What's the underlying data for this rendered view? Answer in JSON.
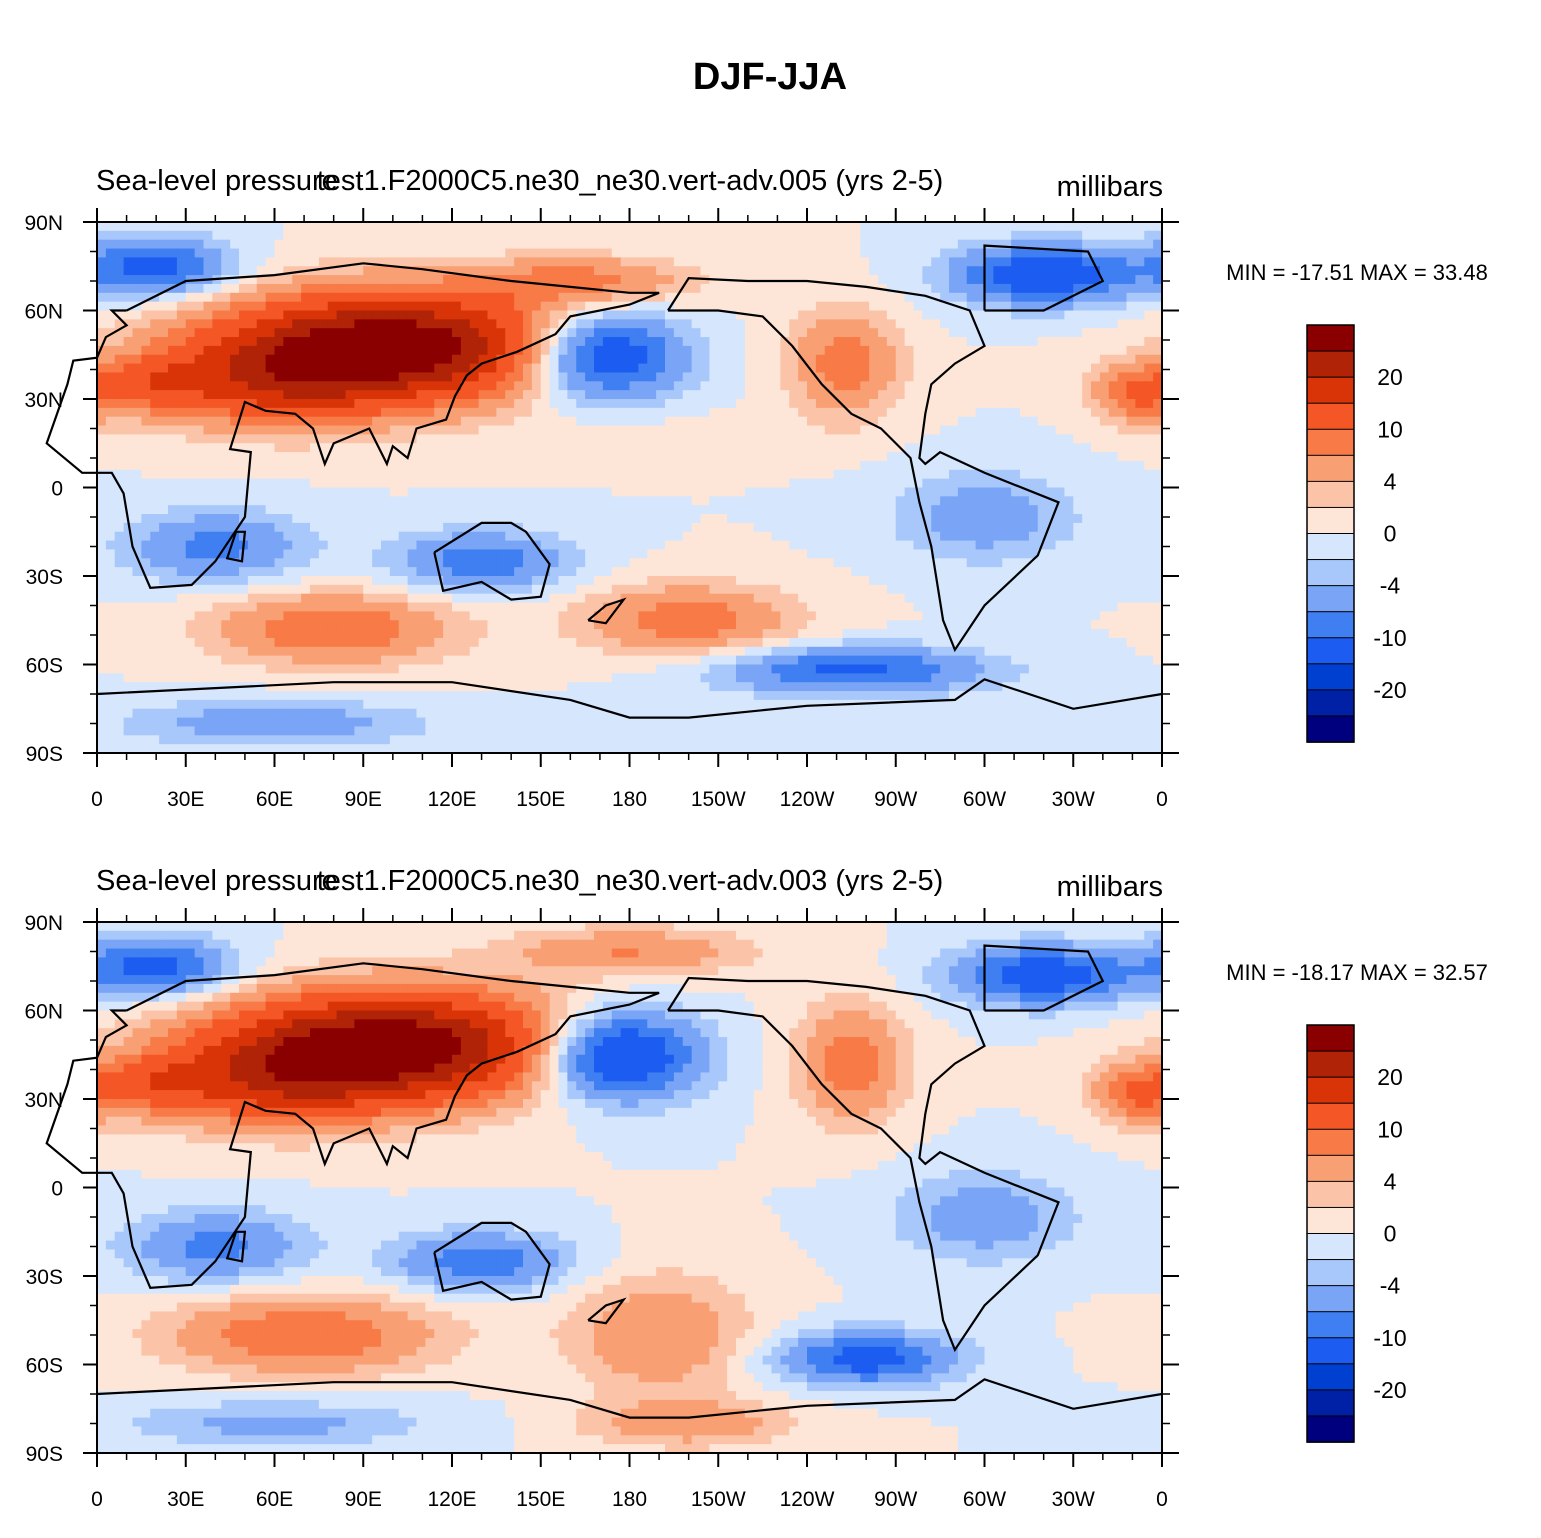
{
  "figure": {
    "title": "DJF-JJA"
  },
  "colors": {
    "levels": [
      "#00007f",
      "#0021a6",
      "#0040d0",
      "#1c5cf0",
      "#3f7ff2",
      "#7aa4f6",
      "#a8c8fb",
      "#d5e6fd",
      "#fde6d8",
      "#fbc4a8",
      "#f99f74",
      "#f77a47",
      "#f45725",
      "#d83408",
      "#b02307",
      "#8a0000"
    ],
    "land_outline": "#000000"
  },
  "chart_data": [
    {
      "type": "heatmap",
      "title_left": "Sea-level pressure",
      "title_center": "test1.F2000C5.ne30_ne30.vert-adv.005 (yrs 2-5)",
      "units": "millibars",
      "stats_text": "MIN = -17.51 MAX =  33.48",
      "min": -17.51,
      "max": 33.48,
      "x_ticks": [
        "0",
        "30E",
        "60E",
        "90E",
        "120E",
        "150E",
        "180",
        "150W",
        "120W",
        "90W",
        "60W",
        "30W",
        "0"
      ],
      "y_ticks": [
        "90N",
        "60N",
        "30N",
        "0",
        "30S",
        "60S",
        "90S"
      ],
      "lon_range": [
        0,
        360
      ],
      "lat_range": [
        -90,
        90
      ],
      "colorbar_labels": [
        "20",
        "10",
        "4",
        "0",
        "-4",
        "-10",
        "-20"
      ],
      "blobs": [
        {
          "lon": 100,
          "lat": 48,
          "rx": 58,
          "ry": 18,
          "amp": 30
        },
        {
          "lon": 60,
          "lat": 35,
          "rx": 40,
          "ry": 15,
          "amp": 12
        },
        {
          "lon": 20,
          "lat": 35,
          "rx": 18,
          "ry": 10,
          "amp": 8
        },
        {
          "lon": 165,
          "lat": 70,
          "rx": 35,
          "ry": 8,
          "amp": 8
        },
        {
          "lon": 253,
          "lat": 42,
          "rx": 18,
          "ry": 18,
          "amp": 9
        },
        {
          "lon": 352,
          "lat": 32,
          "rx": 15,
          "ry": 10,
          "amp": 10
        },
        {
          "lon": 200,
          "lat": 18,
          "rx": 45,
          "ry": 8,
          "amp": 1
        },
        {
          "lon": 170,
          "lat": 45,
          "rx": 28,
          "ry": 15,
          "amp": -18
        },
        {
          "lon": 20,
          "lat": 75,
          "rx": 25,
          "ry": 10,
          "amp": -12
        },
        {
          "lon": 320,
          "lat": 72,
          "rx": 30,
          "ry": 10,
          "amp": -14
        },
        {
          "lon": 40,
          "lat": -20,
          "rx": 30,
          "ry": 12,
          "amp": -8
        },
        {
          "lon": 130,
          "lat": -25,
          "rx": 30,
          "ry": 10,
          "amp": -9
        },
        {
          "lon": 300,
          "lat": -10,
          "rx": 30,
          "ry": 15,
          "amp": -6
        },
        {
          "lon": 80,
          "lat": -48,
          "rx": 40,
          "ry": 12,
          "amp": 10
        },
        {
          "lon": 200,
          "lat": -45,
          "rx": 35,
          "ry": 12,
          "amp": 9
        },
        {
          "lon": 255,
          "lat": -62,
          "rx": 45,
          "ry": 8,
          "amp": -11
        },
        {
          "lon": 60,
          "lat": -80,
          "rx": 50,
          "ry": 8,
          "amp": -6
        }
      ]
    },
    {
      "type": "heatmap",
      "title_left": "Sea-level pressure",
      "title_center": "test1.F2000C5.ne30_ne30.vert-adv.003 (yrs 2-5)",
      "units": "millibars",
      "stats_text": "MIN = -18.17 MAX =  32.57",
      "min": -18.17,
      "max": 32.57,
      "x_ticks": [
        "0",
        "30E",
        "60E",
        "90E",
        "120E",
        "150E",
        "180",
        "150W",
        "120W",
        "90W",
        "60W",
        "30W",
        "0"
      ],
      "y_ticks": [
        "90N",
        "60N",
        "30N",
        "0",
        "30S",
        "60S",
        "90S"
      ],
      "lon_range": [
        0,
        360
      ],
      "lat_range": [
        -90,
        90
      ],
      "colorbar_labels": [
        "20",
        "10",
        "4",
        "0",
        "-4",
        "-10",
        "-20"
      ],
      "blobs": [
        {
          "lon": 100,
          "lat": 48,
          "rx": 58,
          "ry": 18,
          "amp": 30
        },
        {
          "lon": 60,
          "lat": 35,
          "rx": 40,
          "ry": 15,
          "amp": 12
        },
        {
          "lon": 20,
          "lat": 35,
          "rx": 18,
          "ry": 10,
          "amp": 8
        },
        {
          "lon": 180,
          "lat": 80,
          "rx": 40,
          "ry": 8,
          "amp": 7
        },
        {
          "lon": 255,
          "lat": 42,
          "rx": 18,
          "ry": 20,
          "amp": 9
        },
        {
          "lon": 352,
          "lat": 32,
          "rx": 15,
          "ry": 10,
          "amp": 10
        },
        {
          "lon": 175,
          "lat": 45,
          "rx": 28,
          "ry": 15,
          "amp": -19
        },
        {
          "lon": 20,
          "lat": 75,
          "rx": 25,
          "ry": 10,
          "amp": -12
        },
        {
          "lon": 320,
          "lat": 72,
          "rx": 30,
          "ry": 10,
          "amp": -13
        },
        {
          "lon": 40,
          "lat": -20,
          "rx": 30,
          "ry": 12,
          "amp": -8
        },
        {
          "lon": 130,
          "lat": -25,
          "rx": 30,
          "ry": 10,
          "amp": -9
        },
        {
          "lon": 300,
          "lat": -10,
          "rx": 30,
          "ry": 15,
          "amp": -6
        },
        {
          "lon": 70,
          "lat": -50,
          "rx": 45,
          "ry": 13,
          "amp": 10
        },
        {
          "lon": 190,
          "lat": -50,
          "rx": 30,
          "ry": 20,
          "amp": 7
        },
        {
          "lon": 200,
          "lat": -80,
          "rx": 35,
          "ry": 8,
          "amp": 6
        },
        {
          "lon": 260,
          "lat": -58,
          "rx": 30,
          "ry": 9,
          "amp": -12
        },
        {
          "lon": 60,
          "lat": -80,
          "rx": 50,
          "ry": 8,
          "amp": -5
        }
      ]
    }
  ]
}
